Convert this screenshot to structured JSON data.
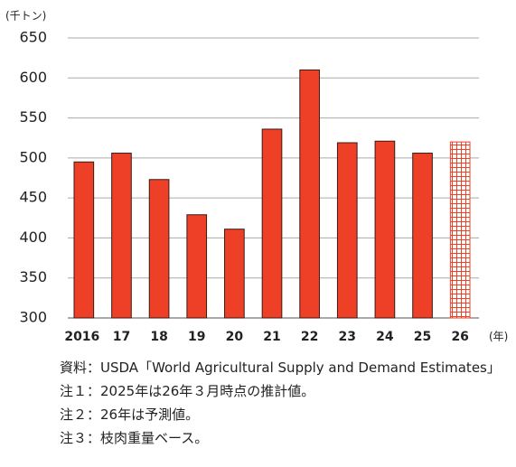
{
  "chart_data": {
    "type": "bar",
    "y_unit": "(千トン)",
    "x_unit": "(年)",
    "categories": [
      "2016",
      "17",
      "18",
      "19",
      "20",
      "21",
      "22",
      "23",
      "24",
      "25",
      "26"
    ],
    "values": [
      495,
      506,
      473,
      429,
      411,
      536,
      610,
      519,
      521,
      506,
      520
    ],
    "bar_styles": [
      "solid",
      "solid",
      "solid",
      "solid",
      "solid",
      "solid",
      "solid",
      "solid",
      "solid",
      "solid",
      "hatched"
    ],
    "color": "#ee4027",
    "ylim": [
      300,
      650
    ],
    "yticks": [
      300,
      350,
      400,
      450,
      500,
      550,
      600,
      650
    ],
    "grid": true
  },
  "notes": [
    {
      "label": "資料：",
      "text": "USDA「World Agricultural Supply and Demand Estimates」"
    },
    {
      "label": "注１：",
      "text": "2025年は26年３月時点の推計値。"
    },
    {
      "label": "注２：",
      "text": "26年は予測値。"
    },
    {
      "label": "注３：",
      "text": "枝肉重量ベース。"
    }
  ]
}
